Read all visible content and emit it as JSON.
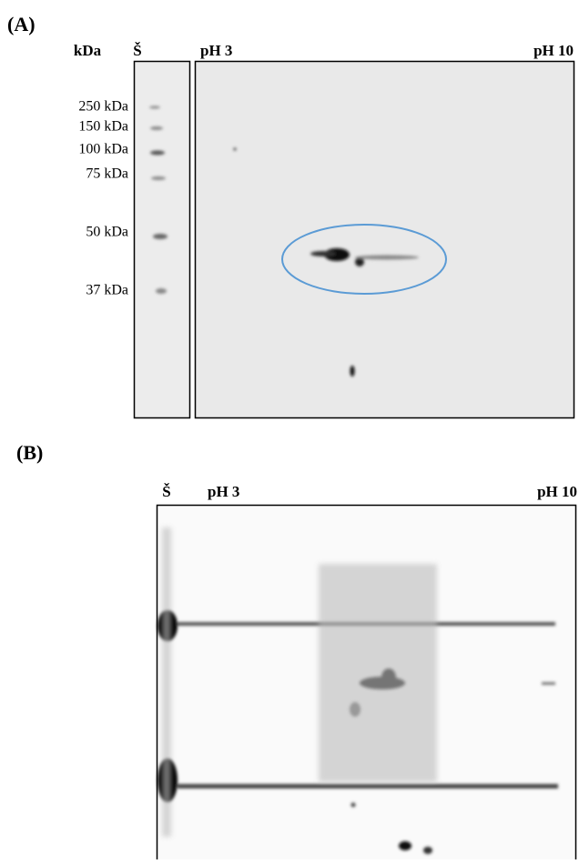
{
  "panel_a": {
    "label": "(A)",
    "axis_label": "kDa",
    "ladder_label": "Š",
    "ph_start": "pH 3",
    "ph_end": "pH 10",
    "markers": [
      "250 kDa",
      "150 kDa",
      "100 kDa",
      "75 kDa",
      "50 kDa",
      "37 kDa"
    ]
  },
  "panel_b": {
    "label": "(B)",
    "ladder_label": "Š",
    "ph_start": "pH 3",
    "ph_end": "pH 10"
  }
}
